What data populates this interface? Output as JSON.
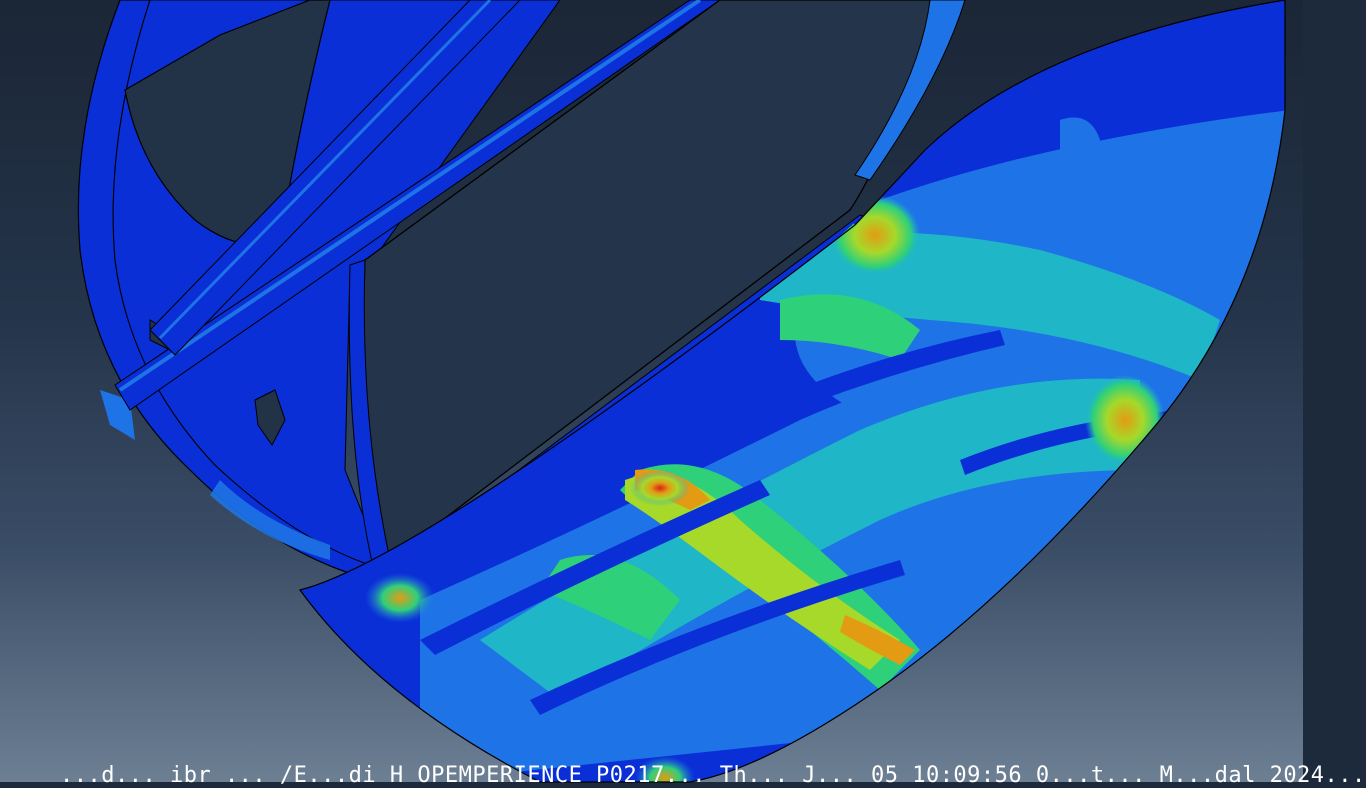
{
  "viewport": {
    "status_text": "...d... ibr ...  /E...di H OPEMPERIENCE P0217... Th... J... 05 10:09:56 0...t...  M...dal 2024..."
  },
  "colors": {
    "background_top": "#1b2636",
    "background_bottom": "#6d7f93",
    "contour_blue": "#0a2fd6",
    "contour_lightblue": "#1e74e6",
    "contour_cyan": "#1fb6c8",
    "contour_green": "#2fd07a",
    "contour_yellowgreen": "#a6d92a",
    "contour_orange": "#e39b14",
    "contour_red": "#d6231a",
    "edge_line": "#000000"
  },
  "model": {
    "icon": "fea-stress-contour-icon"
  }
}
